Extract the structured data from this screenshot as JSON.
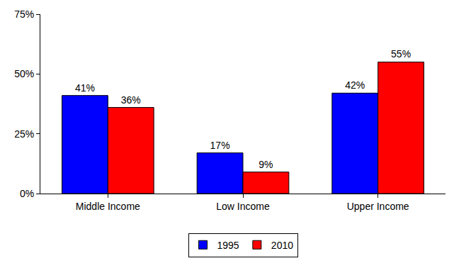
{
  "chart_data": {
    "type": "bar",
    "categories": [
      "Middle Income",
      "Low Income",
      "Upper Income"
    ],
    "series": [
      {
        "name": "1995",
        "color": "#0000ff",
        "values": [
          41,
          17,
          42
        ],
        "value_labels": [
          "41%",
          "17%",
          "42%"
        ]
      },
      {
        "name": "2010",
        "color": "#ff0000",
        "values": [
          36,
          9,
          55
        ],
        "value_labels": [
          "36%",
          "9%",
          "55%"
        ]
      }
    ],
    "ylim": [
      0,
      75
    ],
    "yticks": [
      {
        "value": 0,
        "label": "0%"
      },
      {
        "value": 25,
        "label": "25%"
      },
      {
        "value": 50,
        "label": "50%"
      },
      {
        "value": 75,
        "label": "75%"
      }
    ],
    "grid": false,
    "legend": "bottom",
    "data_labels": true
  }
}
